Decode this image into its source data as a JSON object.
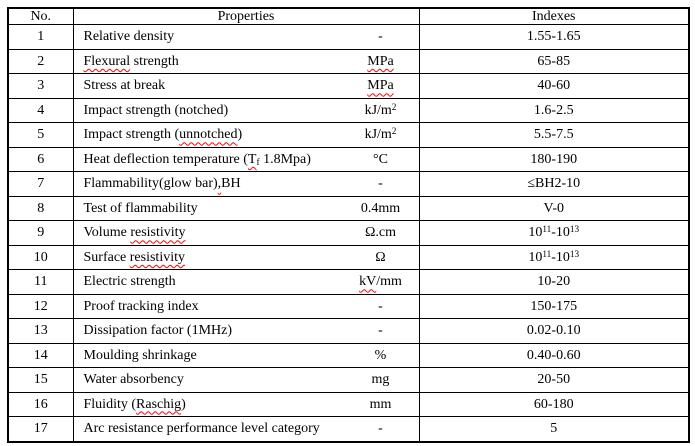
{
  "colors": {
    "border": "#000000",
    "text": "#000000",
    "squiggle": "#ff0000",
    "background": "#ffffff"
  },
  "table": {
    "header": {
      "no": "No.",
      "properties": "Properties",
      "indexes": "Indexes"
    },
    "rows": [
      {
        "no": "1",
        "name": [
          {
            "t": "Relative density"
          }
        ],
        "unit": [
          {
            "t": "-"
          }
        ],
        "index": [
          {
            "t": "1.55-1.65"
          }
        ]
      },
      {
        "no": "2",
        "name": [
          {
            "t": "Flexural",
            "s": "sq"
          },
          {
            "t": " strength"
          }
        ],
        "unit": [
          {
            "t": "MPa",
            "s": "sq"
          }
        ],
        "index": [
          {
            "t": "65-85"
          }
        ]
      },
      {
        "no": "3",
        "name": [
          {
            "t": "Stress at break"
          }
        ],
        "unit": [
          {
            "t": "MPa",
            "s": "sq"
          }
        ],
        "index": [
          {
            "t": "40-60"
          }
        ]
      },
      {
        "no": "4",
        "name": [
          {
            "t": "Impact strength (notched)"
          }
        ],
        "unit": [
          {
            "t": "kJ/m"
          },
          {
            "t": "2",
            "s": "sup"
          }
        ],
        "index": [
          {
            "t": "1.6-2.5"
          }
        ]
      },
      {
        "no": "5",
        "name": [
          {
            "t": "Impact strength ("
          },
          {
            "t": "unnotched",
            "s": "sq"
          },
          {
            "t": ")"
          }
        ],
        "unit": [
          {
            "t": "kJ/m"
          },
          {
            "t": "2",
            "s": "sup"
          }
        ],
        "index": [
          {
            "t": "5.5-7.5"
          }
        ]
      },
      {
        "no": "6",
        "name": [
          {
            "t": "Heat deflection temperature ("
          },
          {
            "t": "T",
            "s": "sq"
          },
          {
            "t": "f",
            "s": "sub sq"
          },
          {
            "t": " 1.8Mpa)"
          }
        ],
        "unit": [
          {
            "t": "°C"
          }
        ],
        "index": [
          {
            "t": "180-190"
          }
        ]
      },
      {
        "no": "7",
        "name": [
          {
            "t": "Flammability(glow bar)"
          },
          {
            "t": ",",
            "s": "sq"
          },
          {
            "t": "BH"
          }
        ],
        "unit": [
          {
            "t": "-"
          }
        ],
        "index": [
          {
            "t": "≤BH2-10"
          }
        ]
      },
      {
        "no": "8",
        "name": [
          {
            "t": "Test of flammability"
          }
        ],
        "unit": [
          {
            "t": "0.4mm"
          }
        ],
        "index": [
          {
            "t": "V-0"
          }
        ]
      },
      {
        "no": "9",
        "name": [
          {
            "t": "Volume "
          },
          {
            "t": "resistivity",
            "s": "sq"
          }
        ],
        "unit": [
          {
            "t": "Ω.cm"
          }
        ],
        "index": [
          {
            "t": "10"
          },
          {
            "t": "11",
            "s": "sup"
          },
          {
            "t": "-10"
          },
          {
            "t": "13",
            "s": "sup"
          }
        ]
      },
      {
        "no": "10",
        "name": [
          {
            "t": "Surface "
          },
          {
            "t": "resistivity",
            "s": "sq"
          }
        ],
        "unit": [
          {
            "t": "Ω"
          }
        ],
        "index": [
          {
            "t": "10"
          },
          {
            "t": "11",
            "s": "sup"
          },
          {
            "t": "-10"
          },
          {
            "t": "13",
            "s": "sup"
          }
        ]
      },
      {
        "no": "11",
        "name": [
          {
            "t": "Electric strength"
          }
        ],
        "unit": [
          {
            "t": "kV",
            "s": "sq"
          },
          {
            "t": "/mm"
          }
        ],
        "index": [
          {
            "t": "10-20"
          }
        ]
      },
      {
        "no": "12",
        "name": [
          {
            "t": "Proof tracking index"
          }
        ],
        "unit": [
          {
            "t": "-"
          }
        ],
        "index": [
          {
            "t": "150-175"
          }
        ]
      },
      {
        "no": "13",
        "name": [
          {
            "t": "Dissipation factor (1MHz)"
          }
        ],
        "unit": [
          {
            "t": "-"
          }
        ],
        "index": [
          {
            "t": "0.02-0.10"
          }
        ]
      },
      {
        "no": "14",
        "name": [
          {
            "t": "Moulding shrinkage"
          }
        ],
        "unit": [
          {
            "t": "%"
          }
        ],
        "index": [
          {
            "t": "0.40-0.60"
          }
        ]
      },
      {
        "no": "15",
        "name": [
          {
            "t": "Water absorbency"
          }
        ],
        "unit": [
          {
            "t": "mg"
          }
        ],
        "index": [
          {
            "t": "20-50"
          }
        ]
      },
      {
        "no": "16",
        "name": [
          {
            "t": "Fluidity ("
          },
          {
            "t": "Raschig",
            "s": "sq"
          },
          {
            "t": ")"
          }
        ],
        "unit": [
          {
            "t": "mm"
          }
        ],
        "index": [
          {
            "t": "60-180"
          }
        ]
      },
      {
        "no": "17",
        "name": [
          {
            "t": "Arc resistance performance level category"
          }
        ],
        "unit": [
          {
            "t": "-"
          }
        ],
        "index": [
          {
            "t": "5"
          }
        ]
      }
    ]
  }
}
